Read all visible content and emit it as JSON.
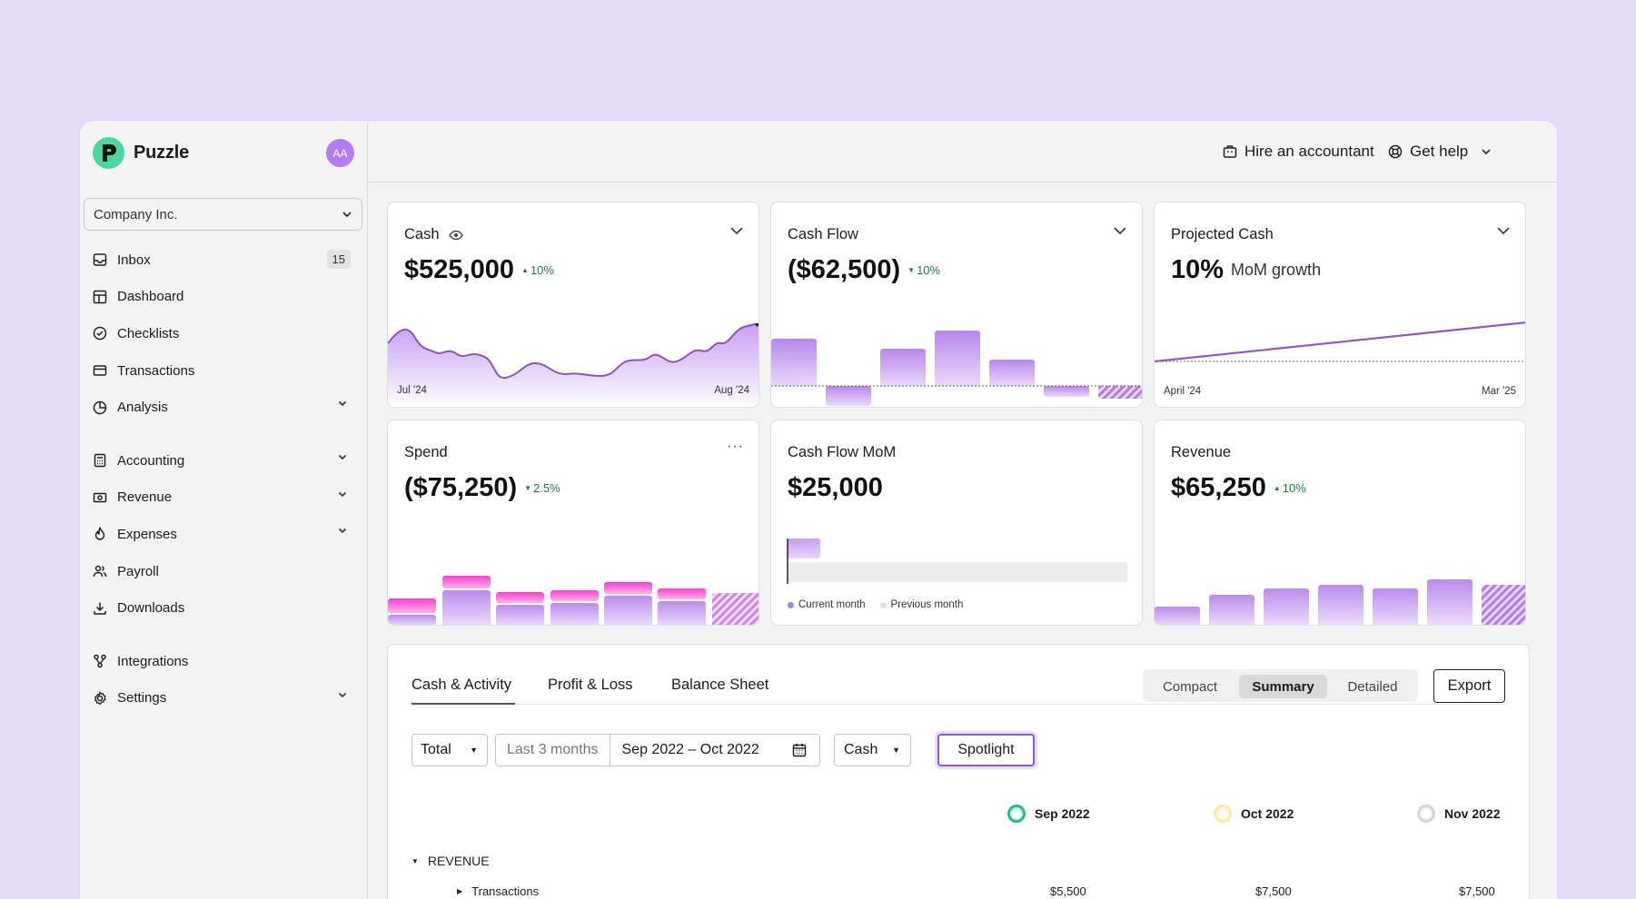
{
  "app": {
    "brand": "Puzzle",
    "avatar_initials": "AA",
    "company": "Company Inc."
  },
  "sidebar": {
    "items": [
      {
        "label": "Inbox",
        "icon": "inbox-icon",
        "badge": "15"
      },
      {
        "label": "Dashboard",
        "icon": "dashboard-icon"
      },
      {
        "label": "Checklists",
        "icon": "check-circle-icon"
      },
      {
        "label": "Transactions",
        "icon": "card-icon"
      },
      {
        "label": "Analysis",
        "icon": "pie-icon"
      },
      {
        "label": "Accounting",
        "icon": "calculator-icon"
      },
      {
        "label": "Revenue",
        "icon": "money-icon"
      },
      {
        "label": "Expenses",
        "icon": "flame-icon"
      },
      {
        "label": "Payroll",
        "icon": "people-icon"
      },
      {
        "label": "Downloads",
        "icon": "download-icon"
      },
      {
        "label": "Integrations",
        "icon": "integrations-icon"
      },
      {
        "label": "Settings",
        "icon": "gear-icon"
      }
    ]
  },
  "topbar": {
    "hire": "Hire an accountant",
    "help": "Get help"
  },
  "cards": {
    "cash": {
      "title": "Cash",
      "value": "$525,000",
      "delta": "10%",
      "x_start": "Jul '24",
      "x_end": "Aug '24"
    },
    "cashflow": {
      "title": "Cash Flow",
      "value": "($62,500)",
      "delta": "10%"
    },
    "projected": {
      "title": "Projected Cash",
      "value": "10%",
      "value_suffix": "MoM growth",
      "x_start": "April '24",
      "x_end": "Mar '25"
    },
    "spend": {
      "title": "Spend",
      "value": "($75,250)",
      "delta": "2.5%"
    },
    "mom": {
      "title": "Cash Flow MoM",
      "value": "$25,000",
      "legend_current": "Current month",
      "legend_previous": "Previous month"
    },
    "revenue": {
      "title": "Revenue",
      "value": "$65,250",
      "delta": "10%"
    }
  },
  "report": {
    "tabs": [
      "Cash & Activity",
      "Profit & Loss",
      "Balance Sheet"
    ],
    "views": [
      "Compact",
      "Summary",
      "Detailed"
    ],
    "export": "Export",
    "total": "Total",
    "range_preset": "Last 3 months",
    "range": "Sep 2022 – Oct 2022",
    "basis": "Cash",
    "spotlight": "Spotlight",
    "columns": [
      "Sep 2022",
      "Oct 2022",
      "Nov 2022"
    ],
    "section": "REVENUE",
    "row_label": "Transactions",
    "row_values": [
      "$5,500",
      "$7,500",
      "$7,500"
    ]
  },
  "colors": {
    "accent": "#9b5de5",
    "purple_light": "#e3cffb",
    "pink": "#ff4fd8",
    "green": "#1e7a3c"
  }
}
